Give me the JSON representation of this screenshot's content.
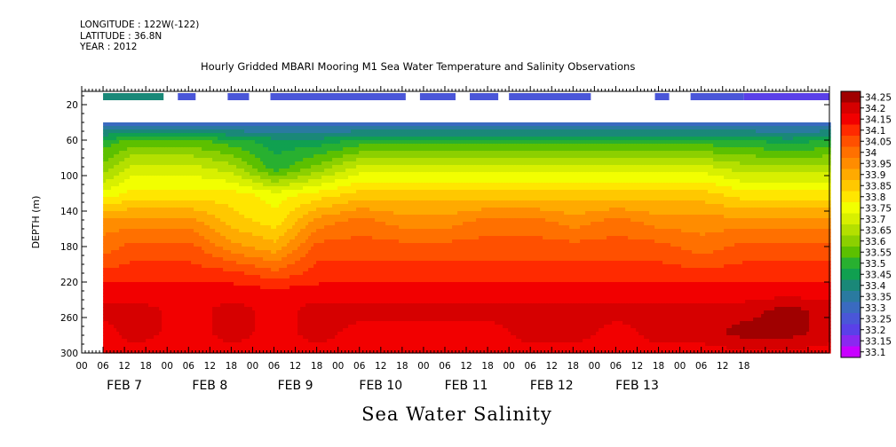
{
  "meta": {
    "longitude": "LONGITUDE : 122W(-122)",
    "latitude": "LATITUDE : 36.8N",
    "year": "YEAR : 2012"
  },
  "title": "Hourly Gridded MBARI Mooring M1 Sea Water Temperature and Salinity Observations",
  "subtitle": "Sea Water Salinity",
  "chart_data": {
    "type": "heatmap",
    "title": "Hourly Gridded MBARI Mooring M1 Sea Water Temperature and Salinity Observations",
    "xlabel": "",
    "ylabel": "DEPTH (m)",
    "variable": "Sea Water Salinity",
    "y_ticks": [
      20,
      60,
      100,
      140,
      180,
      220,
      260,
      300
    ],
    "ylim": [
      300,
      5
    ],
    "x_hour_ticks": [
      "00",
      "06",
      "12",
      "18",
      "00",
      "06",
      "12",
      "18",
      "00",
      "06",
      "12",
      "18",
      "00",
      "06",
      "12",
      "18",
      "00",
      "06",
      "12",
      "18",
      "00",
      "06",
      "12",
      "18",
      "00",
      "06",
      "12",
      "18",
      "00",
      "06",
      "12",
      "18"
    ],
    "x_day_labels": [
      "FEB  7",
      "FEB  8",
      "FEB  9",
      "FEB 10",
      "FEB 11",
      "FEB 12",
      "FEB 13"
    ],
    "colorbar": {
      "levels": [
        "34.25",
        "34.2",
        "34.15",
        "34.1",
        "34.05",
        "34",
        "33.95",
        "33.9",
        "33.85",
        "33.8",
        "33.75",
        "33.7",
        "33.65",
        "33.6",
        "33.55",
        "33.5",
        "33.45",
        "33.4",
        "33.35",
        "33.3",
        "33.25",
        "33.2",
        "33.15",
        "33.1"
      ],
      "colors": [
        "#a00000",
        "#d60000",
        "#f20000",
        "#ff2a00",
        "#ff5000",
        "#ff7000",
        "#ff8c00",
        "#ffaa00",
        "#ffc800",
        "#ffe600",
        "#f2ff00",
        "#d8f000",
        "#b4e000",
        "#8cd000",
        "#5cc000",
        "#28b030",
        "#10a050",
        "#1a8878",
        "#2a7aa0",
        "#3a6ac0",
        "#4a56d8",
        "#5a40e8",
        "#8a28f0",
        "#c800ff"
      ]
    },
    "surface_bins": [
      {
        "start_hour": 6,
        "end_hour": 23,
        "salinity": 33.4
      },
      {
        "start_hour": 27,
        "end_hour": 32,
        "salinity": 33.25
      },
      {
        "start_hour": 41,
        "end_hour": 47,
        "salinity": 33.25
      },
      {
        "start_hour": 53,
        "end_hour": 91,
        "salinity": 33.25
      },
      {
        "start_hour": 95,
        "end_hour": 105,
        "salinity": 33.25
      },
      {
        "start_hour": 109,
        "end_hour": 117,
        "salinity": 33.25
      },
      {
        "start_hour": 120,
        "end_hour": 143,
        "salinity": 33.25
      },
      {
        "start_hour": 161,
        "end_hour": 165,
        "salinity": 33.25
      },
      {
        "start_hour": 171,
        "end_hour": 186,
        "salinity": 33.25
      },
      {
        "start_hour": 186,
        "end_hour": 210,
        "salinity": 33.2
      }
    ],
    "profile_depths": [
      40,
      60,
      90,
      120,
      150,
      180,
      210,
      230,
      250,
      275,
      300
    ],
    "profiles": [
      {
        "hour": 6,
        "salinity": [
          33.3,
          33.5,
          33.6,
          33.75,
          33.95,
          34.0,
          34.1,
          34.15,
          34.2,
          34.15,
          34.15
        ]
      },
      {
        "hour": 14,
        "salinity": [
          33.3,
          33.55,
          33.7,
          33.8,
          33.95,
          34.05,
          34.1,
          34.15,
          34.2,
          34.2,
          34.15
        ]
      },
      {
        "hour": 30,
        "salinity": [
          33.3,
          33.55,
          33.7,
          33.8,
          33.95,
          34.05,
          34.1,
          34.15,
          34.15,
          34.15,
          34.15
        ]
      },
      {
        "hour": 42,
        "salinity": [
          33.3,
          33.5,
          33.65,
          33.8,
          33.85,
          33.95,
          34.1,
          34.15,
          34.2,
          34.2,
          34.15
        ]
      },
      {
        "hour": 54,
        "salinity": [
          33.3,
          33.45,
          33.5,
          33.75,
          33.8,
          33.9,
          34.05,
          34.15,
          34.15,
          34.15,
          34.15
        ]
      },
      {
        "hour": 66,
        "salinity": [
          33.3,
          33.45,
          33.6,
          33.8,
          33.95,
          34.05,
          34.1,
          34.15,
          34.2,
          34.2,
          34.15
        ]
      },
      {
        "hour": 78,
        "salinity": [
          33.3,
          33.5,
          33.7,
          33.85,
          34.0,
          34.05,
          34.1,
          34.15,
          34.2,
          34.15,
          34.15
        ]
      },
      {
        "hour": 90,
        "salinity": [
          33.3,
          33.5,
          33.7,
          33.85,
          33.95,
          34.05,
          34.1,
          34.15,
          34.2,
          34.15,
          34.15
        ]
      },
      {
        "hour": 102,
        "salinity": [
          33.3,
          33.5,
          33.7,
          33.85,
          33.95,
          34.05,
          34.1,
          34.15,
          34.2,
          34.15,
          34.15
        ]
      },
      {
        "hour": 114,
        "salinity": [
          33.3,
          33.5,
          33.7,
          33.85,
          34.0,
          34.05,
          34.1,
          34.15,
          34.2,
          34.15,
          34.15
        ]
      },
      {
        "hour": 126,
        "salinity": [
          33.3,
          33.5,
          33.7,
          33.85,
          34.0,
          34.05,
          34.1,
          34.15,
          34.2,
          34.2,
          34.15
        ]
      },
      {
        "hour": 138,
        "salinity": [
          33.3,
          33.5,
          33.7,
          33.85,
          33.95,
          34.05,
          34.1,
          34.15,
          34.2,
          34.2,
          34.15
        ]
      },
      {
        "hour": 150,
        "salinity": [
          33.3,
          33.5,
          33.7,
          33.85,
          34.0,
          34.05,
          34.1,
          34.15,
          34.2,
          34.15,
          34.15
        ]
      },
      {
        "hour": 162,
        "salinity": [
          33.3,
          33.5,
          33.7,
          33.85,
          33.95,
          34.05,
          34.1,
          34.15,
          34.2,
          34.2,
          34.15
        ]
      },
      {
        "hour": 174,
        "salinity": [
          33.3,
          33.5,
          33.7,
          33.85,
          33.95,
          34.0,
          34.1,
          34.15,
          34.2,
          34.2,
          34.15
        ]
      },
      {
        "hour": 186,
        "salinity": [
          33.3,
          33.5,
          33.65,
          33.8,
          33.95,
          34.05,
          34.1,
          34.15,
          34.2,
          34.25,
          34.15
        ]
      },
      {
        "hour": 198,
        "salinity": [
          33.3,
          33.45,
          33.65,
          33.8,
          33.95,
          34.05,
          34.1,
          34.15,
          34.25,
          34.25,
          34.15
        ]
      },
      {
        "hour": 210,
        "salinity": [
          33.3,
          33.5,
          33.65,
          33.8,
          33.95,
          34.05,
          34.1,
          34.15,
          34.2,
          34.2,
          34.15
        ]
      }
    ]
  }
}
